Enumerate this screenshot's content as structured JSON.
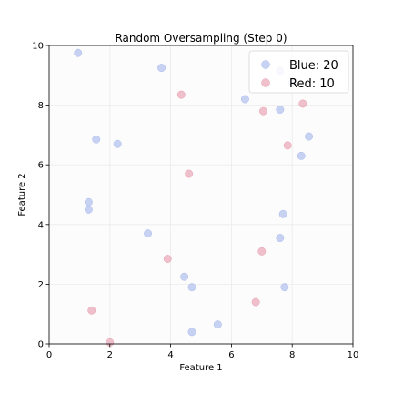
{
  "chart_data": {
    "type": "scatter",
    "title": "Random Oversampling (Step 0)",
    "xlabel": "Feature 1",
    "ylabel": "Feature 2",
    "xlim": [
      0,
      10
    ],
    "ylim": [
      0,
      10
    ],
    "xticks": [
      "0",
      "2",
      "4",
      "6",
      "8",
      "10"
    ],
    "yticks": [
      "0",
      "2",
      "4",
      "6",
      "8",
      "10"
    ],
    "grid": true,
    "legend_position": "top-right",
    "series": [
      {
        "name": "Blue: 20",
        "color": "#aabbee",
        "points": [
          [
            0.95,
            9.75
          ],
          [
            3.7,
            9.25
          ],
          [
            1.55,
            6.85
          ],
          [
            2.25,
            6.7
          ],
          [
            1.3,
            4.75
          ],
          [
            1.3,
            4.5
          ],
          [
            3.25,
            3.7
          ],
          [
            4.45,
            2.25
          ],
          [
            4.7,
            1.9
          ],
          [
            4.7,
            0.4
          ],
          [
            5.55,
            0.65
          ],
          [
            6.45,
            8.2
          ],
          [
            7.6,
            7.85
          ],
          [
            8.55,
            6.95
          ],
          [
            8.3,
            6.3
          ],
          [
            7.7,
            4.35
          ],
          [
            7.6,
            3.55
          ],
          [
            7.75,
            1.9
          ],
          [
            7.6,
            9.15
          ],
          [
            8.0,
            8.75
          ]
        ]
      },
      {
        "name": "Red: 10",
        "color": "#e8a0b0",
        "points": [
          [
            4.35,
            8.35
          ],
          [
            7.05,
            7.8
          ],
          [
            8.35,
            8.05
          ],
          [
            7.85,
            6.65
          ],
          [
            4.6,
            5.7
          ],
          [
            3.9,
            2.85
          ],
          [
            7.0,
            3.1
          ],
          [
            6.8,
            1.4
          ],
          [
            1.4,
            1.12
          ],
          [
            2.0,
            0.05
          ]
        ]
      }
    ]
  }
}
